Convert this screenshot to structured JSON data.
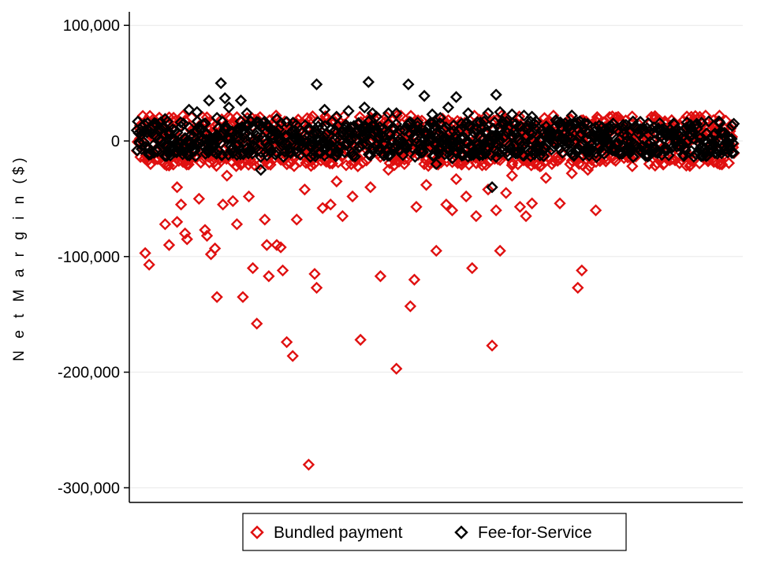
{
  "chart_data": {
    "type": "scatter",
    "title": "",
    "xlabel": "",
    "ylabel": "N e t M a r g i n ($)",
    "ylim": [
      -310000,
      110000
    ],
    "y_ticks": [
      100000,
      0,
      -100000,
      -200000,
      -300000
    ],
    "y_tick_labels": [
      "100,000",
      "0",
      "-100,000",
      "-200,000",
      "-300,000"
    ],
    "grid": "horizontal",
    "legend_position": "bottom",
    "n_observations": 300,
    "series": [
      {
        "name": "Bundled payment",
        "marker": "hollow-diamond",
        "color": "#e01010",
        "outliers": [
          [
            4,
            -97000
          ],
          [
            6,
            -107000
          ],
          [
            14,
            -72000
          ],
          [
            16,
            -90000
          ],
          [
            20,
            -70000
          ],
          [
            24,
            -80000
          ],
          [
            25,
            -85000
          ],
          [
            22,
            -55000
          ],
          [
            31,
            -50000
          ],
          [
            34,
            -77000
          ],
          [
            35,
            -82000
          ],
          [
            37,
            -98000
          ],
          [
            39,
            -93000
          ],
          [
            40,
            -135000
          ],
          [
            43,
            -55000
          ],
          [
            48,
            -52000
          ],
          [
            50,
            -72000
          ],
          [
            53,
            -135000
          ],
          [
            56,
            -48000
          ],
          [
            58,
            -110000
          ],
          [
            60,
            -158000
          ],
          [
            64,
            -68000
          ],
          [
            65,
            -90000
          ],
          [
            66,
            -117000
          ],
          [
            70,
            -90000
          ],
          [
            72,
            -92000
          ],
          [
            73,
            -112000
          ],
          [
            75,
            -174000
          ],
          [
            78,
            -186000
          ],
          [
            80,
            -68000
          ],
          [
            84,
            -42000
          ],
          [
            86,
            -280000
          ],
          [
            89,
            -115000
          ],
          [
            90,
            -127000
          ],
          [
            93,
            -58000
          ],
          [
            97,
            -55000
          ],
          [
            103,
            -65000
          ],
          [
            108,
            -48000
          ],
          [
            112,
            -172000
          ],
          [
            117,
            -40000
          ],
          [
            122,
            -117000
          ],
          [
            126,
            -25000
          ],
          [
            130,
            -197000
          ],
          [
            134,
            -20000
          ],
          [
            137,
            -143000
          ],
          [
            139,
            -120000
          ],
          [
            140,
            -57000
          ],
          [
            150,
            -95000
          ],
          [
            155,
            -55000
          ],
          [
            158,
            -60000
          ],
          [
            165,
            -48000
          ],
          [
            168,
            -110000
          ],
          [
            170,
            -65000
          ],
          [
            176,
            -42000
          ],
          [
            178,
            -177000
          ],
          [
            180,
            -60000
          ],
          [
            182,
            -95000
          ],
          [
            188,
            -30000
          ],
          [
            192,
            -57000
          ],
          [
            195,
            -65000
          ],
          [
            198,
            -54000
          ],
          [
            202,
            -22000
          ],
          [
            208,
            -20000
          ],
          [
            212,
            -54000
          ],
          [
            218,
            -28000
          ],
          [
            221,
            -127000
          ],
          [
            223,
            -112000
          ],
          [
            226,
            -25000
          ],
          [
            230,
            -60000
          ],
          [
            20,
            -40000
          ],
          [
            45,
            -30000
          ],
          [
            100,
            -35000
          ],
          [
            145,
            -38000
          ],
          [
            160,
            -33000
          ],
          [
            185,
            -45000
          ],
          [
            205,
            -32000
          ]
        ]
      },
      {
        "name": "Fee-for-Service",
        "marker": "hollow-diamond",
        "color": "#000000",
        "outliers": [
          [
            26,
            27000
          ],
          [
            30,
            25000
          ],
          [
            36,
            35000
          ],
          [
            42,
            50000
          ],
          [
            44,
            37000
          ],
          [
            46,
            29000
          ],
          [
            52,
            35000
          ],
          [
            55,
            24000
          ],
          [
            62,
            -25000
          ],
          [
            90,
            49000
          ],
          [
            94,
            27000
          ],
          [
            106,
            26000
          ],
          [
            114,
            29000
          ],
          [
            116,
            51000
          ],
          [
            118,
            24000
          ],
          [
            126,
            24000
          ],
          [
            130,
            24000
          ],
          [
            136,
            49000
          ],
          [
            144,
            39000
          ],
          [
            148,
            23000
          ],
          [
            156,
            29000
          ],
          [
            160,
            38000
          ],
          [
            166,
            24000
          ],
          [
            176,
            24000
          ],
          [
            180,
            40000
          ],
          [
            182,
            25000
          ],
          [
            188,
            23000
          ],
          [
            194,
            22000
          ],
          [
            198,
            21000
          ],
          [
            218,
            22000
          ],
          [
            222,
            17000
          ],
          [
            178,
            -40000
          ],
          [
            14,
            19000
          ],
          [
            40,
            20000
          ],
          [
            70,
            19000
          ],
          [
            100,
            21000
          ],
          [
            120,
            21000
          ],
          [
            152,
            20000
          ],
          [
            200,
            17000
          ],
          [
            210,
            18000
          ],
          [
            150,
            -20000
          ],
          [
            158,
            -15000
          ],
          [
            172,
            -12000
          ],
          [
            50,
            -12000
          ],
          [
            80,
            -10000
          ]
        ]
      }
    ]
  }
}
